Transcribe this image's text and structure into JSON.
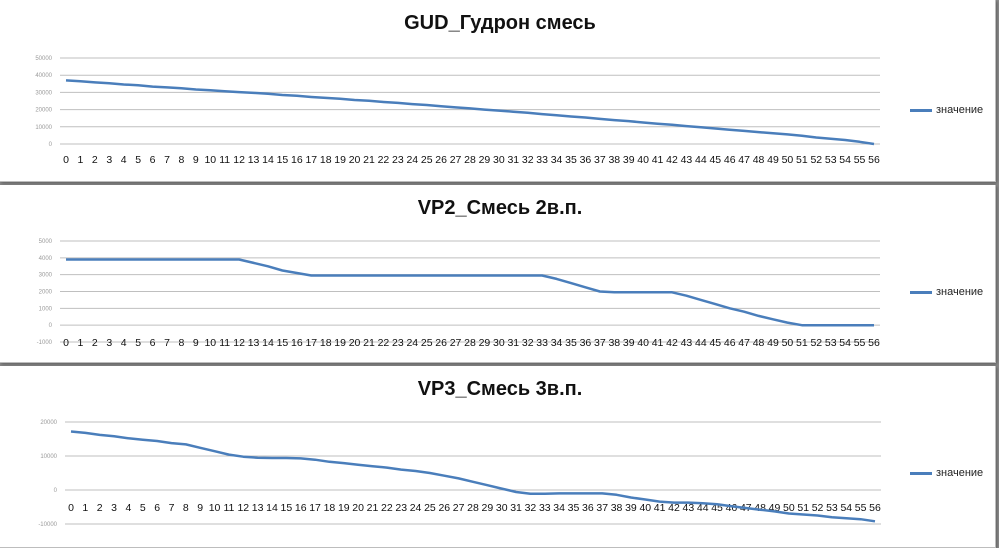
{
  "colors": {
    "series": "#4a7ebb",
    "grid": "#bfbfbf"
  },
  "chart_data": [
    {
      "type": "line",
      "title": "GUD_Гудрон смесь",
      "legend": "right",
      "grid": true,
      "x": [
        0,
        1,
        2,
        3,
        4,
        5,
        6,
        7,
        8,
        9,
        10,
        11,
        12,
        13,
        14,
        15,
        16,
        17,
        18,
        19,
        20,
        21,
        22,
        23,
        24,
        25,
        26,
        27,
        28,
        29,
        30,
        31,
        32,
        33,
        34,
        35,
        36,
        37,
        38,
        39,
        40,
        41,
        42,
        43,
        44,
        45,
        46,
        47,
        48,
        49,
        50,
        51,
        52,
        53,
        54,
        55,
        56
      ],
      "ylim": [
        0,
        50000
      ],
      "yticks": [
        0,
        10000,
        20000,
        30000,
        40000,
        50000
      ],
      "ytick_labels": [
        "0",
        "10000",
        "20000",
        "30000",
        "40000",
        "50000"
      ],
      "series": [
        {
          "name": "значение",
          "values": [
            37000,
            36500,
            35800,
            35300,
            34600,
            34100,
            33400,
            32900,
            32400,
            31700,
            31200,
            30700,
            30200,
            29700,
            29200,
            28500,
            28000,
            27300,
            26800,
            26300,
            25600,
            25100,
            24400,
            23900,
            23200,
            22700,
            21900,
            21300,
            20700,
            20000,
            19400,
            18800,
            18200,
            17400,
            16700,
            16000,
            15400,
            14600,
            13900,
            13300,
            12500,
            11800,
            11200,
            10400,
            9700,
            9000,
            8300,
            7600,
            6900,
            6200,
            5600,
            4800,
            3800,
            3000,
            2300,
            1300,
            0
          ]
        }
      ]
    },
    {
      "type": "line",
      "title": "VP2_Смесь 2в.п.",
      "legend": "right",
      "grid": true,
      "x": [
        0,
        1,
        2,
        3,
        4,
        5,
        6,
        7,
        8,
        9,
        10,
        11,
        12,
        13,
        14,
        15,
        16,
        17,
        18,
        19,
        20,
        21,
        22,
        23,
        24,
        25,
        26,
        27,
        28,
        29,
        30,
        31,
        32,
        33,
        34,
        35,
        36,
        37,
        38,
        39,
        40,
        41,
        42,
        43,
        44,
        45,
        46,
        47,
        48,
        49,
        50,
        51,
        52,
        53,
        54,
        55,
        56
      ],
      "ylim": [
        -1000,
        5000
      ],
      "yticks": [
        -1000,
        0,
        1000,
        2000,
        3000,
        4000,
        5000
      ],
      "ytick_labels": [
        "-1000",
        "0",
        "1000",
        "2000",
        "3000",
        "4000",
        "5000"
      ],
      "series": [
        {
          "name": "значение",
          "values": [
            3900,
            3900,
            3900,
            3900,
            3900,
            3900,
            3900,
            3900,
            3900,
            3900,
            3900,
            3900,
            3900,
            3700,
            3500,
            3250,
            3100,
            2950,
            2950,
            2950,
            2950,
            2950,
            2950,
            2950,
            2950,
            2950,
            2950,
            2950,
            2950,
            2950,
            2950,
            2950,
            2950,
            2950,
            2750,
            2500,
            2250,
            2000,
            1950,
            1950,
            1950,
            1950,
            1950,
            1750,
            1500,
            1250,
            1000,
            800,
            550,
            350,
            150,
            0,
            0,
            0,
            0,
            0,
            0
          ]
        }
      ]
    },
    {
      "type": "line",
      "title": "VP3_Смесь 3в.п.",
      "legend": "right",
      "grid": true,
      "x": [
        0,
        1,
        2,
        3,
        4,
        5,
        6,
        7,
        8,
        9,
        10,
        11,
        12,
        13,
        14,
        15,
        16,
        17,
        18,
        19,
        20,
        21,
        22,
        23,
        24,
        25,
        26,
        27,
        28,
        29,
        30,
        31,
        32,
        33,
        34,
        35,
        36,
        37,
        38,
        39,
        40,
        41,
        42,
        43,
        44,
        45,
        46,
        47,
        48,
        49,
        50,
        51,
        52,
        53,
        54,
        55,
        56
      ],
      "ylim": [
        -10000,
        20000
      ],
      "yticks": [
        -10000,
        0,
        10000,
        20000
      ],
      "ytick_labels": [
        "-10000",
        "0",
        "10000",
        "20000"
      ],
      "series": [
        {
          "name": "значение",
          "values": [
            17200,
            16800,
            16200,
            15800,
            15200,
            14800,
            14400,
            13800,
            13400,
            12400,
            11400,
            10400,
            9800,
            9500,
            9400,
            9400,
            9300,
            8900,
            8300,
            7900,
            7400,
            7000,
            6600,
            6000,
            5600,
            5000,
            4200,
            3400,
            2400,
            1400,
            400,
            -600,
            -1100,
            -1100,
            -1000,
            -1000,
            -1000,
            -1000,
            -1400,
            -2200,
            -2800,
            -3400,
            -3700,
            -3700,
            -3900,
            -4200,
            -4800,
            -5300,
            -5800,
            -6300,
            -6900,
            -7200,
            -7500,
            -8000,
            -8300,
            -8600,
            -9200
          ]
        }
      ]
    }
  ]
}
